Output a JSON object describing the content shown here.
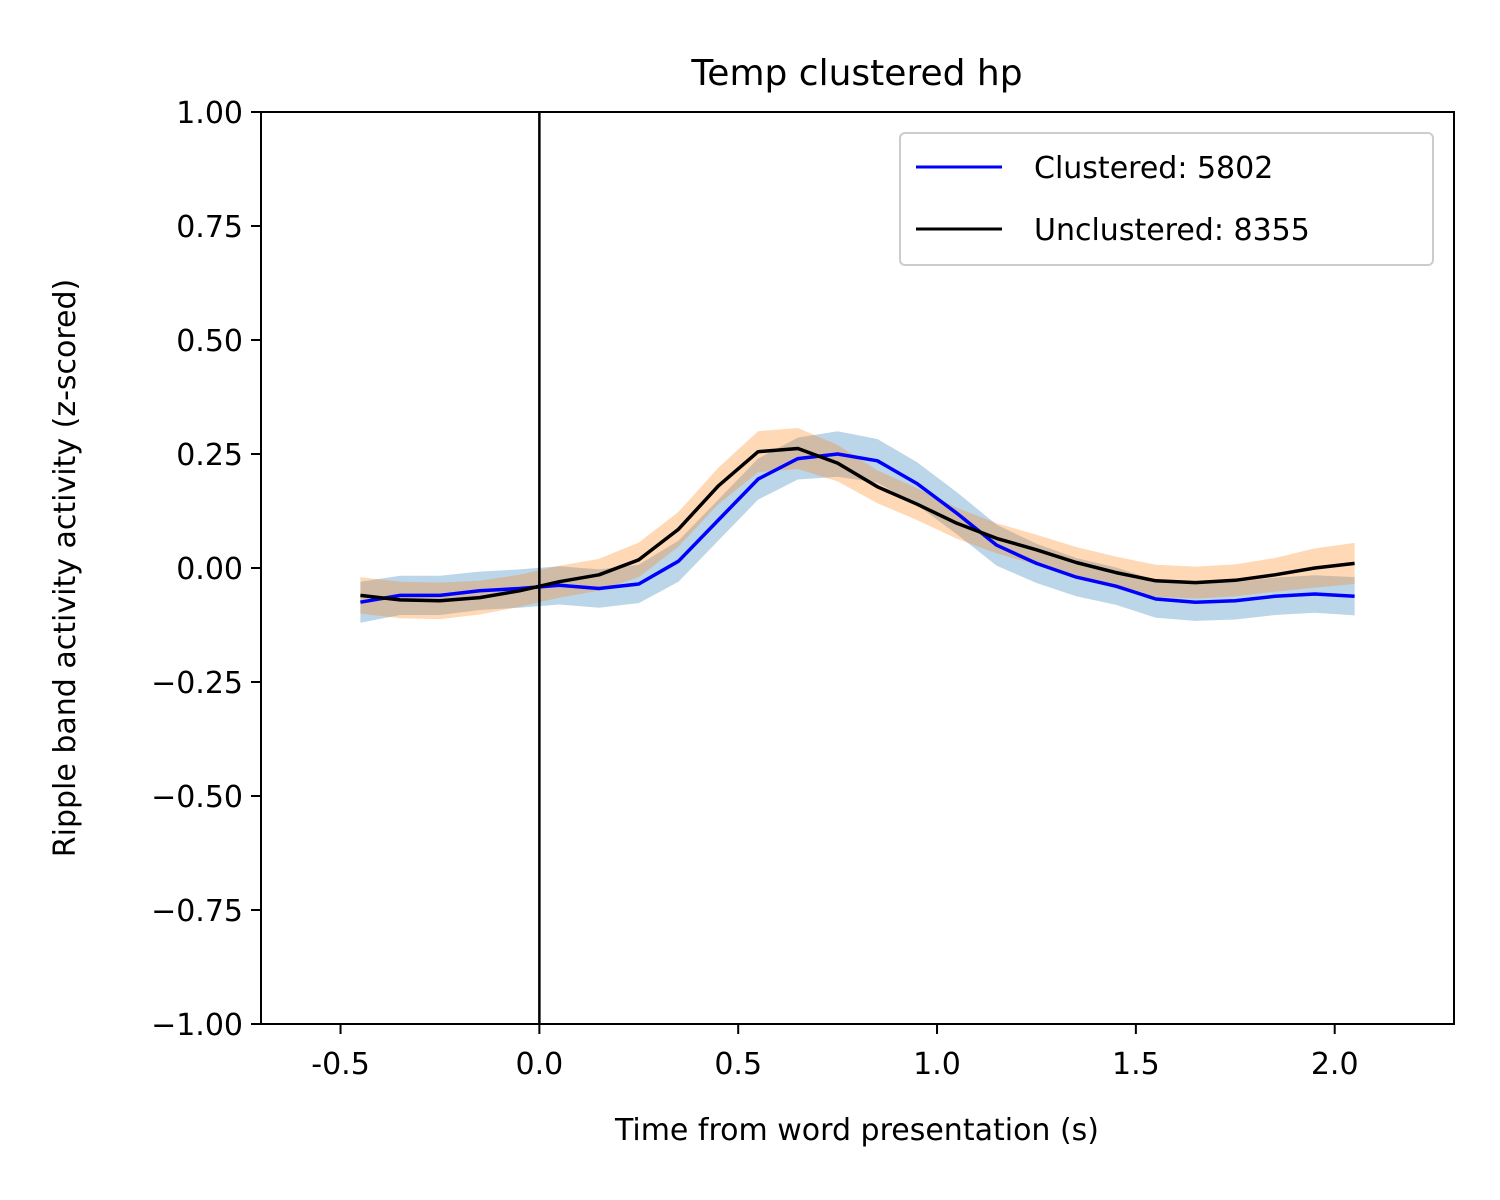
{
  "chart_data": {
    "type": "line",
    "title": "Temp clustered hp",
    "xlabel": "Time from word presentation (s)",
    "ylabel": "Ripple band activity activity (z-scored)",
    "xlim": [
      -0.7,
      2.3
    ],
    "ylim": [
      -1.0,
      1.0
    ],
    "xticks": [
      -0.5,
      0.0,
      0.5,
      1.0,
      1.5,
      2.0
    ],
    "xtick_labels": [
      "-0.5",
      "0.0",
      "0.5",
      "1.0",
      "1.5",
      "2.0"
    ],
    "yticks": [
      1.0,
      0.75,
      0.5,
      0.25,
      0.0,
      -0.25,
      -0.5,
      -0.75,
      -1.0
    ],
    "ytick_labels": [
      "1.00",
      "0.75",
      "0.50",
      "0.25",
      "0.00",
      "−0.25",
      "−0.50",
      "−0.75",
      "−1.00"
    ],
    "vline_x": 0.0,
    "grid": false,
    "legend_position": "top-right",
    "x": [
      -0.45,
      -0.35,
      -0.25,
      -0.15,
      -0.05,
      0.05,
      0.15,
      0.25,
      0.35,
      0.45,
      0.55,
      0.65,
      0.75,
      0.85,
      0.95,
      1.05,
      1.15,
      1.25,
      1.35,
      1.45,
      1.55,
      1.65,
      1.75,
      1.85,
      1.95,
      2.05
    ],
    "series": [
      {
        "name": "Clustered: 5802",
        "color": "#0000ff",
        "band_color": "#1f77b4",
        "values": [
          -0.075,
          -0.06,
          -0.06,
          -0.05,
          -0.045,
          -0.038,
          -0.045,
          -0.035,
          0.015,
          0.105,
          0.195,
          0.24,
          0.25,
          0.235,
          0.185,
          0.12,
          0.05,
          0.01,
          -0.02,
          -0.04,
          -0.068,
          -0.075,
          -0.072,
          -0.062,
          -0.057,
          -0.062
        ],
        "err": [
          0.045,
          0.043,
          0.043,
          0.042,
          0.042,
          0.042,
          0.042,
          0.042,
          0.045,
          0.045,
          0.045,
          0.046,
          0.05,
          0.048,
          0.047,
          0.046,
          0.045,
          0.043,
          0.042,
          0.041,
          0.041,
          0.041,
          0.041,
          0.041,
          0.041,
          0.042
        ]
      },
      {
        "name": "Unclustered: 8355",
        "color": "#000000",
        "band_color": "#ff7f0e",
        "values": [
          -0.06,
          -0.07,
          -0.072,
          -0.065,
          -0.05,
          -0.03,
          -0.015,
          0.018,
          0.085,
          0.18,
          0.255,
          0.262,
          0.23,
          0.178,
          0.14,
          0.098,
          0.065,
          0.04,
          0.012,
          -0.01,
          -0.028,
          -0.032,
          -0.027,
          -0.015,
          0.0,
          0.01
        ],
        "err": [
          0.04,
          0.04,
          0.04,
          0.037,
          0.035,
          0.035,
          0.035,
          0.038,
          0.038,
          0.04,
          0.045,
          0.045,
          0.04,
          0.036,
          0.035,
          0.034,
          0.033,
          0.033,
          0.034,
          0.035,
          0.035,
          0.035,
          0.035,
          0.037,
          0.043,
          0.045
        ]
      }
    ]
  }
}
